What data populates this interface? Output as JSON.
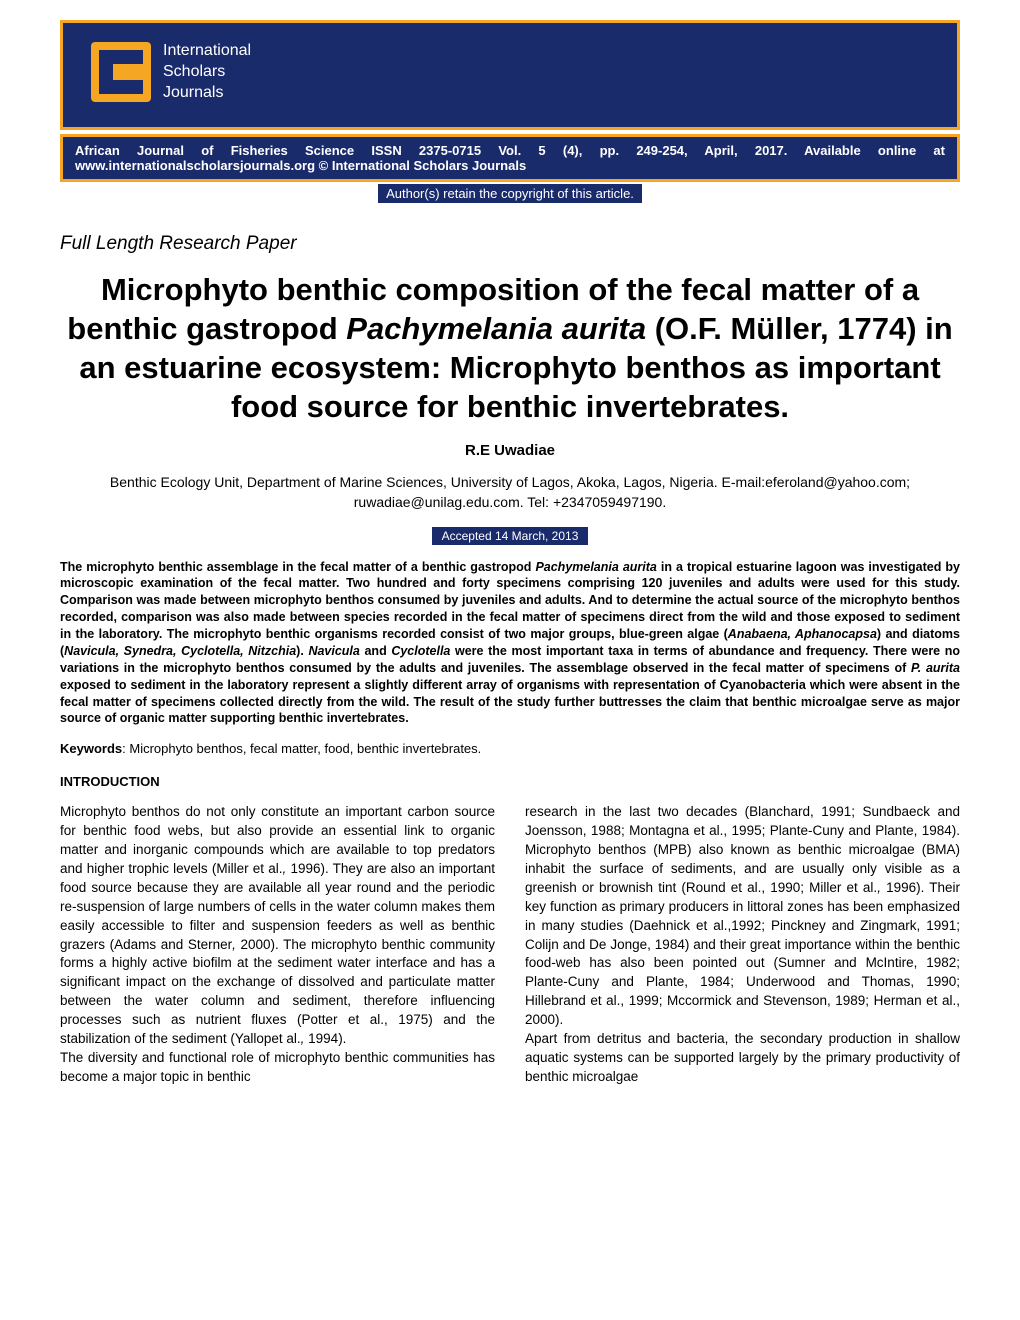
{
  "header": {
    "logo_line1": "International",
    "logo_line2": "Scholars",
    "logo_line3": "Journals",
    "journal_info": "African Journal of Fisheries Science ISSN 2375-0715 Vol. 5 (4), pp. 249-254, April, 2017. Available online at www.internationalscholarsjournals.org © International Scholars Journals",
    "author_retain": "Author(s) retain the copyright of this article."
  },
  "paper_type": "Full Length Research Paper",
  "title_part1": "Microphyto benthic composition of the fecal matter of a benthic gastropod ",
  "title_species": "Pachymelania aurita",
  "title_part2": " (O.F. Müller, 1774) in an estuarine ecosystem: Microphyto benthos as important food source for benthic invertebrates.",
  "author": "R.E Uwadiae",
  "affiliation": "Benthic Ecology Unit, Department of Marine Sciences, University of Lagos, Akoka, Lagos, Nigeria. E-mail:eferoland@yahoo.com; ruwadiae@unilag.edu.com. Tel: +2347059497190.",
  "accepted": "Accepted 14 March, 2013",
  "abstract_html": "The microphyto benthic assemblage in the fecal matter of a benthic gastropod <em>Pachymelania aurita</em> in a tropical estuarine lagoon was investigated by microscopic examination of the fecal matter. Two hundred and forty specimens comprising 120 juveniles and adults were used for this study. Comparison was made between microphyto benthos consumed by juveniles and adults. And to determine the actual source of the microphyto benthos recorded, comparison was also made between species recorded in the fecal matter of specimens direct from the wild and those exposed to sediment in the laboratory. The microphyto benthic organisms recorded consist of two major groups, blue-green algae (<em>Anabaena, Aphanocapsa</em>) and diatoms (<em>Navicula, Synedra, Cyclotella, Nitzchia</em>). <em>Navicula</em> and <em>Cyclotella</em> were the most important taxa in terms of abundance and frequency. There were no variations in the microphyto benthos consumed by the adults and juveniles. The assemblage observed in the fecal matter of specimens of <em>P. aurita</em> exposed to sediment in the laboratory represent a slightly different array of organisms with representation of Cyanobacteria which were absent in the fecal matter of specimens collected directly from the wild. The result of the study further buttresses the claim that benthic microalgae serve as major source of organic matter supporting benthic invertebrates.",
  "keywords_label": "Keywords",
  "keywords_text": ": Microphyto benthos, fecal matter, food, benthic invertebrates.",
  "intro_heading": "INTRODUCTION",
  "col1_html": "Microphyto benthos do not only constitute an important carbon source for benthic food webs, but also provide an essential link to organic matter and inorganic compounds which are available to top predators and higher trophic levels (Miller et al.<em>,</em> 1996). They are also an important food source because they are available all year round and the periodic re-suspension of large numbers of cells in the water column makes them easily accessible to filter and suspension feeders as well as benthic grazers (Adams and Sterner<em>,</em> 2000). The microphyto benthic community forms a highly active biofilm at the sediment water interface and has a significant impact on the exchange of dissolved and particulate matter between the water column and sediment, therefore influencing processes such as nutrient fluxes (Potter et al., 1975) and the stabilization of the sediment (Yallopet al.<em>,</em> 1994).<br>The diversity and functional role of microphyto benthic communities has become a major topic in benthic",
  "col2_html": "research in the last two decades (Blanchard, 1991; Sundbaeck and Joensson, 1988; Montagna et al., 1995; Plante-Cuny and Plante, 1984). Microphyto benthos (MPB) also known as benthic microalgae (BMA) inhabit the surface of sediments, and are usually only visible as a greenish or brownish tint (Round et al., 1990; Miller et al.<em>,</em> 1996). Their key function as primary producers in littoral zones has been emphasized in many studies (Daehnick et al.,1992; Pinckney and Zingmark, 1991; Colijn and De Jonge, 1984) and their great importance within the benthic food-web has also been pointed out (Sumner and McIntire, 1982; Plante-Cuny and Plante, 1984; Underwood and Thomas, 1990; Hillebrand et al., 1999; Mccormick and Stevenson, 1989; Herman et al., 2000).<br>Apart from detritus and bacteria, the secondary production in shallow aquatic systems can be supported largely by the primary productivity of benthic microalgae",
  "colors": {
    "header_bg": "#1a2b6b",
    "accent": "#f5a623",
    "text": "#000000",
    "white": "#ffffff"
  }
}
